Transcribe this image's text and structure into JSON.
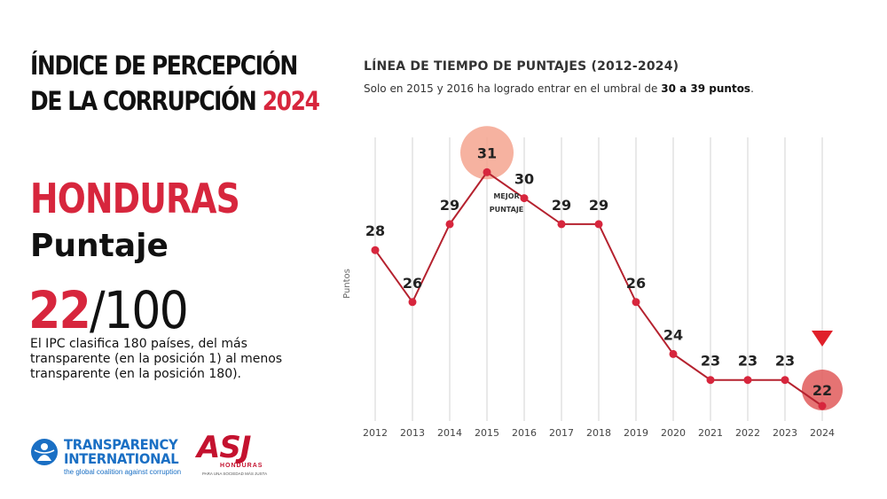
{
  "left": {
    "title_line1": "ÍNDICE DE PERCEPCIÓN",
    "title_line2_prefix": "DE LA CORRUPCIÓN",
    "title_year": "2024",
    "country": "HONDURAS",
    "score_label": "Puntaje",
    "score_value": "22",
    "score_total": "/100",
    "description": "El IPC clasifica 180 países, del más transparente (en la posición 1) al menos transparente (en la posición 180)."
  },
  "logos": {
    "ti_line1": "TRANSPARENCY",
    "ti_line2": "INTERNATIONAL",
    "ti_tagline": "the global coalition against corruption",
    "asj_name": "ASJ",
    "asj_sub": "HONDURAS",
    "asj_tagline": "PARA UNA SOCIEDAD MÁS JUSTA"
  },
  "colors": {
    "accent": "#d7263d",
    "line": "#b5222f",
    "highlight_best": "#f4a58f",
    "highlight_current": "#e05a5a",
    "ti_blue": "#1a6fc4"
  },
  "chart_data": {
    "type": "line",
    "title": "LÍNEA DE TIEMPO DE PUNTAJES (2012-2024)",
    "subtitle_prefix": "Solo en 2015 y 2016 ha logrado entrar en el umbral de",
    "subtitle_bold": "30 a 39 puntos",
    "subtitle_suffix": ".",
    "ylabel": "Puntos",
    "x": [
      "2012",
      "2013",
      "2014",
      "2015",
      "2016",
      "2017",
      "2018",
      "2019",
      "2020",
      "2021",
      "2022",
      "2023",
      "2024"
    ],
    "values": [
      28,
      26,
      29,
      31,
      30,
      29,
      29,
      26,
      24,
      23,
      23,
      23,
      22
    ],
    "best_annotation_line1": "MEJOR",
    "best_annotation_line2": "PUNTAJE",
    "best_index": 3,
    "current_index": 12,
    "grid": "vertical",
    "current_marker": "down-triangle"
  }
}
